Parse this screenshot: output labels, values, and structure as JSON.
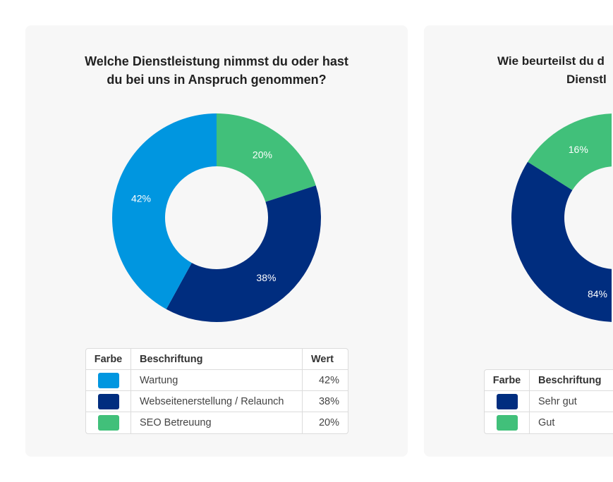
{
  "chart_data": [
    {
      "type": "pie",
      "donut": true,
      "title_lines": [
        "Welche Dienstleistung nimmst du oder hast",
        "du bei uns in Anspruch genommen?"
      ],
      "categories": [
        "Wartung",
        "Webseitenerstellung / Relaunch",
        "SEO Betreuung"
      ],
      "values": [
        42,
        38,
        20
      ],
      "data_labels": [
        "42%",
        "38%",
        "20%"
      ],
      "colors": [
        "#0096e0",
        "#002d7f",
        "#41c07a"
      ],
      "legend": {
        "headers": [
          "Farbe",
          "Beschriftung",
          "Wert"
        ],
        "placement": "bottom"
      }
    },
    {
      "type": "pie",
      "donut": true,
      "title_lines": [
        "Wie beurteilst du d",
        "Dienstl"
      ],
      "categories": [
        "Sehr gut",
        "Gut"
      ],
      "values": [
        84,
        16
      ],
      "data_labels": [
        "84%",
        "16%"
      ],
      "colors": [
        "#002d7f",
        "#41c07a"
      ],
      "legend": {
        "headers": [
          "Farbe",
          "Beschriftung"
        ],
        "placement": "bottom"
      }
    }
  ]
}
